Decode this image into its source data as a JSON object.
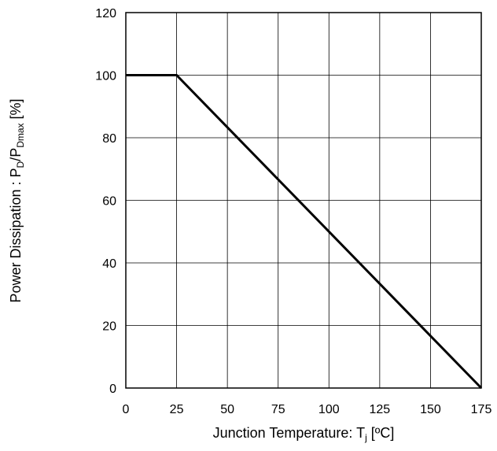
{
  "chart_data": {
    "type": "line",
    "title": "",
    "xlabel": "Junction Temperature: T",
    "xlabel_sub": "j",
    "xlabel_unit": " [ºC]",
    "ylabel_prefix": "Power Dissipation : P",
    "ylabel_sub1": "D",
    "ylabel_mid": "/P",
    "ylabel_sub2": "Dmax",
    "ylabel_suffix": " [%]",
    "xlim": [
      0,
      175
    ],
    "ylim": [
      0,
      120
    ],
    "xticks": [
      0,
      25,
      50,
      75,
      100,
      125,
      150,
      175
    ],
    "yticks": [
      0,
      20,
      40,
      60,
      80,
      100,
      120
    ],
    "grid": true,
    "legend": "none",
    "series": [
      {
        "x": [
          0,
          25,
          175
        ],
        "y": [
          100,
          100,
          0
        ],
        "color": "#000000"
      }
    ]
  }
}
